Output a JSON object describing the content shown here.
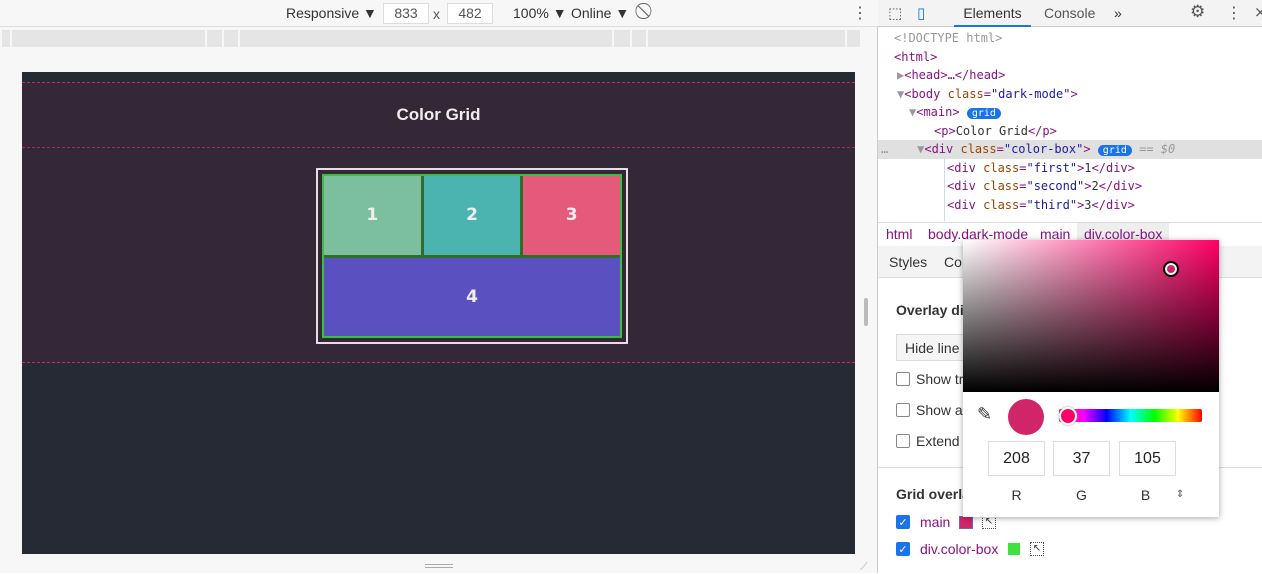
{
  "device_toolbar": {
    "device": "Responsive",
    "width": "833",
    "x": "x",
    "height": "482",
    "zoom": "100%",
    "network": "Online"
  },
  "page": {
    "title": "Color Grid",
    "cells": [
      {
        "label": "1",
        "color": "#7bbf9e"
      },
      {
        "label": "2",
        "color": "#4cb4b0"
      },
      {
        "label": "3",
        "color": "#e55a7a"
      },
      {
        "label": "4",
        "color": "#5b50c0"
      }
    ]
  },
  "devtools": {
    "tabs": [
      "Elements",
      "Console"
    ],
    "more": "»",
    "dom": {
      "doctype": "<!DOCTYPE html>",
      "html": "<html>",
      "head": "<head>…</head>",
      "body_tag": "<body ",
      "body_attr": "class",
      "body_val": "\"dark-mode\"",
      "main": "<main>",
      "badge": "grid",
      "p_open": "<p>",
      "p_text": "Color Grid",
      "p_close": "</p>",
      "div_open": "<div ",
      "div_attr": "class",
      "div_val": "\"color-box\"",
      "selected_marker": "== $0",
      "children": [
        {
          "cls": "\"first\"",
          "text": "1"
        },
        {
          "cls": "\"second\"",
          "text": "2"
        },
        {
          "cls": "\"third\"",
          "text": "3"
        }
      ]
    },
    "breadcrumbs": [
      "html",
      "body.dark-mode",
      "main",
      "div.color-box"
    ],
    "subtabs": [
      "Styles",
      "Co"
    ],
    "layout": {
      "overlay_heading": "Overlay dis",
      "select_value": "Hide line l",
      "checkboxes": [
        "Show tr",
        "Show ar",
        "Extend g"
      ],
      "grid_overlays_heading": "Grid overla",
      "overlays": [
        {
          "name": "main",
          "color": "#d02569",
          "checked": true
        },
        {
          "name": "div.color-box",
          "color": "#3fe03f",
          "checked": true
        }
      ]
    }
  },
  "color_picker": {
    "r": "208",
    "g": "37",
    "b": "105",
    "labels": [
      "R",
      "G",
      "B"
    ],
    "swatch": "#d02569",
    "hue": "#ff0066"
  }
}
